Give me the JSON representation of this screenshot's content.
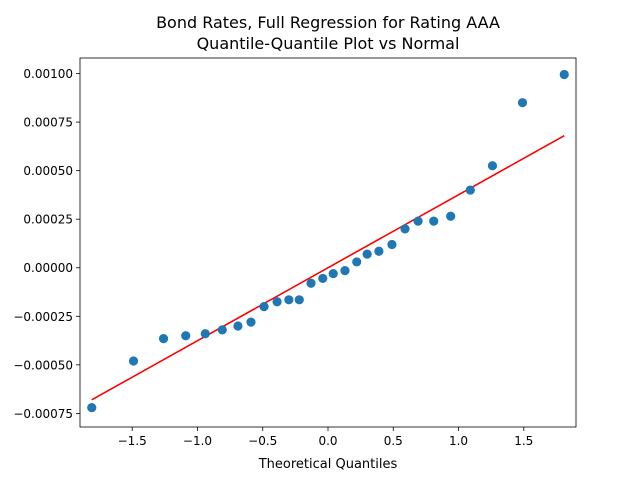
{
  "chart_data": {
    "type": "scatter",
    "title": "Bond Rates, Full Regression for Rating AAA",
    "subtitle": "Quantile-Quantile Plot vs Normal",
    "xlabel": "Theoretical Quantiles",
    "ylabel": "",
    "xlim": [
      -1.9,
      1.9
    ],
    "ylim": [
      -0.00082,
      0.00108
    ],
    "xticks": [
      -1.5,
      -1.0,
      -0.5,
      0.0,
      0.5,
      1.0,
      1.5
    ],
    "xtick_labels": [
      "−1.5",
      "−1.0",
      "−0.5",
      "0.0",
      "0.5",
      "1.0",
      "1.5"
    ],
    "yticks": [
      -0.00075,
      -0.0005,
      -0.00025,
      0.0,
      0.00025,
      0.0005,
      0.00075,
      0.001
    ],
    "ytick_labels": [
      "−0.00075",
      "−0.00050",
      "−0.00025",
      "0.00000",
      "0.00025",
      "0.00050",
      "0.00075",
      "0.00100"
    ],
    "grid": false,
    "series": [
      {
        "kind": "points",
        "color": "#1f77b4",
        "x": [
          -1.81,
          -1.49,
          -1.26,
          -1.09,
          -0.94,
          -0.81,
          -0.69,
          -0.59,
          -0.49,
          -0.39,
          -0.3,
          -0.22,
          -0.13,
          -0.04,
          0.04,
          0.13,
          0.22,
          0.3,
          0.39,
          0.49,
          0.59,
          0.69,
          0.81,
          0.94,
          1.09,
          1.26,
          1.49,
          1.81
        ],
        "y": [
          -0.00072,
          -0.00048,
          -0.000365,
          -0.00035,
          -0.00034,
          -0.00032,
          -0.0003,
          -0.00028,
          -0.0002,
          -0.000175,
          -0.000165,
          -0.000165,
          -8e-05,
          -5.5e-05,
          -3e-05,
          -1.5e-05,
          3e-05,
          7e-05,
          8.5e-05,
          0.00012,
          0.0002,
          0.00024,
          0.00024,
          0.000265,
          0.0004,
          0.000525,
          0.00085,
          0.000995
        ]
      },
      {
        "kind": "line",
        "color": "#ff0000",
        "x": [
          -1.81,
          1.81
        ],
        "y": [
          -0.00068,
          0.00068
        ]
      }
    ]
  }
}
